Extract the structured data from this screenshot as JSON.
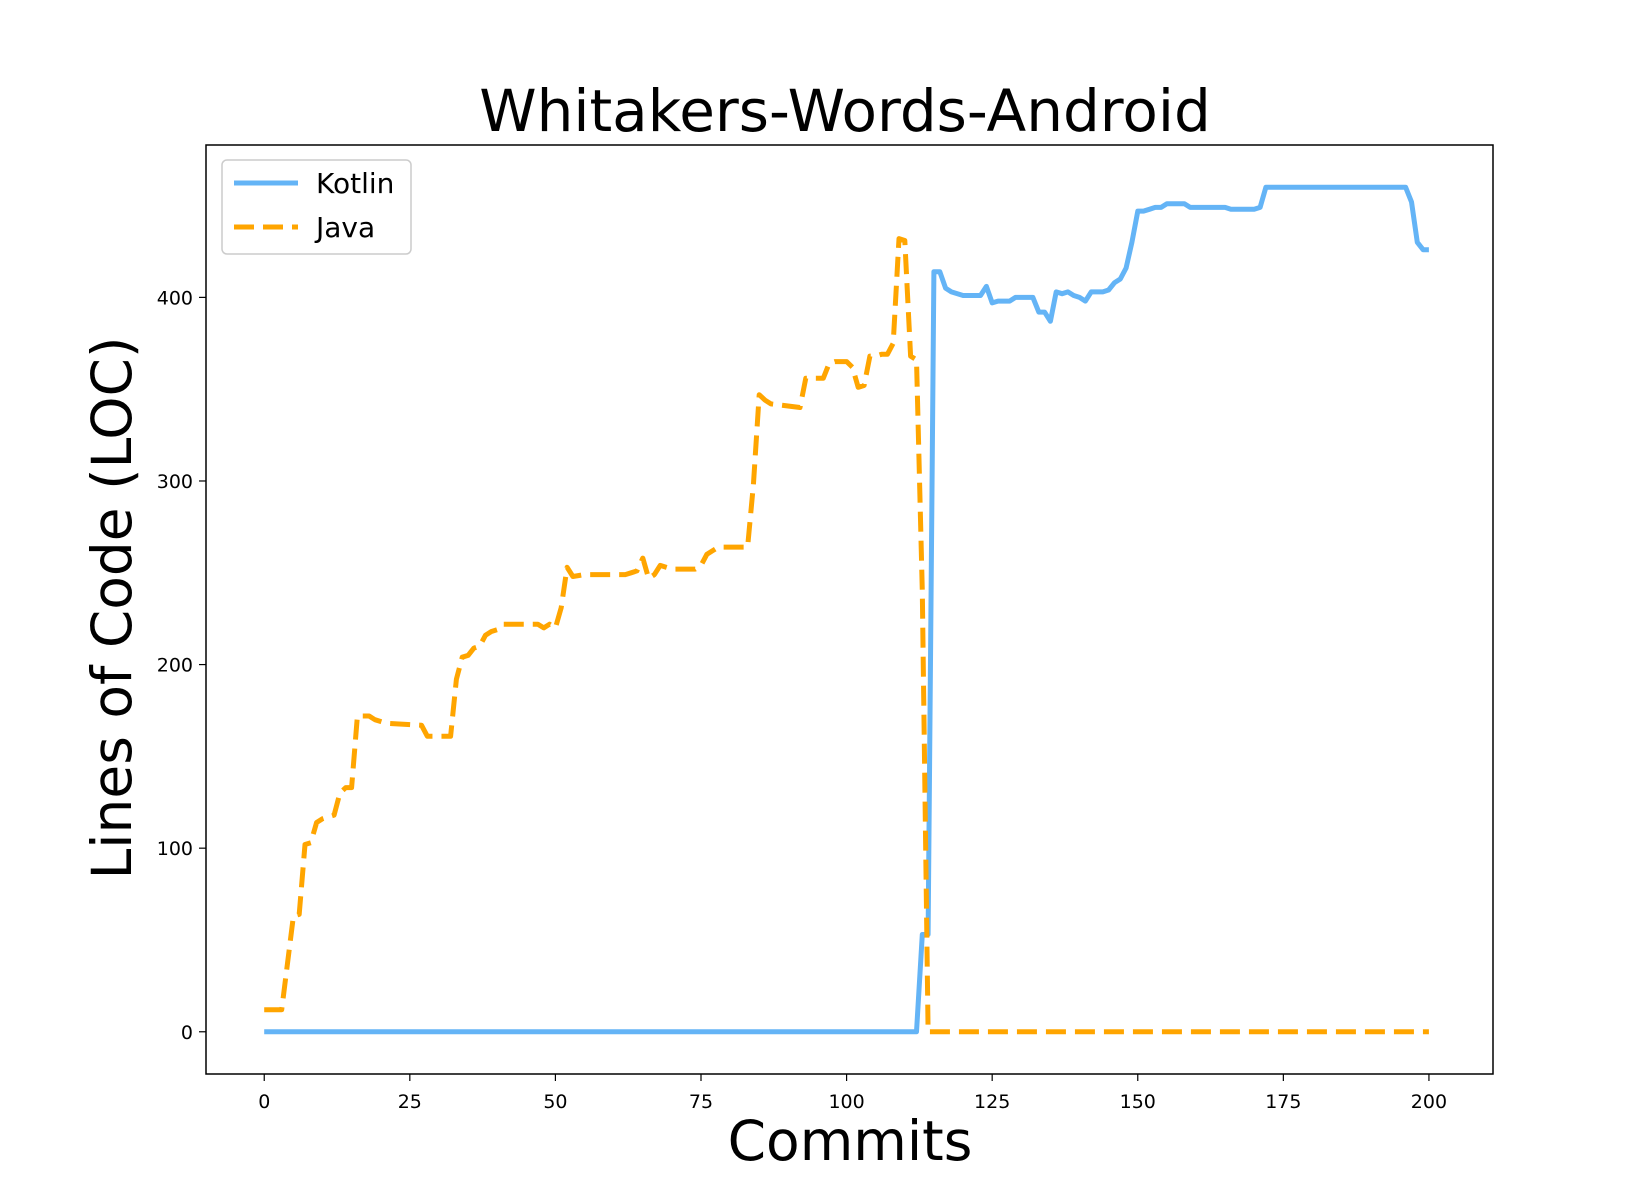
{
  "chart_data": {
    "type": "line",
    "title": "Whitakers-Words-Android",
    "xlabel": "Commits",
    "ylabel": "Lines of Code (LOC)",
    "xlim": [
      -10,
      211
    ],
    "ylim": [
      -23,
      483
    ],
    "xticks": [
      0,
      25,
      50,
      75,
      100,
      125,
      150,
      175,
      200
    ],
    "yticks": [
      0,
      100,
      200,
      300,
      400
    ],
    "grid": false,
    "legend_position": "top-left",
    "series": [
      {
        "name": "Kotlin",
        "color": "#64b4f6",
        "line_style": "solid",
        "points": [
          [
            0,
            0
          ],
          [
            112,
            0
          ],
          [
            113,
            53
          ],
          [
            114,
            53
          ],
          [
            115,
            414
          ],
          [
            116,
            414
          ],
          [
            117,
            405
          ],
          [
            118,
            403
          ],
          [
            120,
            401
          ],
          [
            123,
            401
          ],
          [
            124,
            406
          ],
          [
            125,
            397
          ],
          [
            126,
            398
          ],
          [
            128,
            398
          ],
          [
            129,
            400
          ],
          [
            132,
            400
          ],
          [
            133,
            392
          ],
          [
            134,
            392
          ],
          [
            135,
            387
          ],
          [
            136,
            403
          ],
          [
            137,
            402
          ],
          [
            138,
            403
          ],
          [
            139,
            401
          ],
          [
            140,
            400
          ],
          [
            141,
            398
          ],
          [
            142,
            403
          ],
          [
            144,
            403
          ],
          [
            145,
            404
          ],
          [
            146,
            408
          ],
          [
            147,
            410
          ],
          [
            148,
            416
          ],
          [
            149,
            430
          ],
          [
            150,
            447
          ],
          [
            151,
            447
          ],
          [
            152,
            448
          ],
          [
            153,
            449
          ],
          [
            154,
            449
          ],
          [
            155,
            451
          ],
          [
            158,
            451
          ],
          [
            159,
            449
          ],
          [
            165,
            449
          ],
          [
            166,
            448
          ],
          [
            170,
            448
          ],
          [
            171,
            449
          ],
          [
            172,
            460
          ],
          [
            196,
            460
          ],
          [
            197,
            452
          ],
          [
            198,
            430
          ],
          [
            199,
            426
          ],
          [
            200,
            426
          ]
        ]
      },
      {
        "name": "Java",
        "color": "#ffa500",
        "line_style": "dashed",
        "points": [
          [
            0,
            12
          ],
          [
            3,
            12
          ],
          [
            5,
            63
          ],
          [
            6,
            64
          ],
          [
            7,
            102
          ],
          [
            8,
            103
          ],
          [
            9,
            114
          ],
          [
            10,
            116
          ],
          [
            12,
            118
          ],
          [
            13,
            130
          ],
          [
            14,
            133
          ],
          [
            15,
            133
          ],
          [
            16,
            172
          ],
          [
            18,
            172
          ],
          [
            19,
            170
          ],
          [
            20,
            169
          ],
          [
            21,
            168
          ],
          [
            27,
            167
          ],
          [
            28,
            161
          ],
          [
            32,
            161
          ],
          [
            33,
            192
          ],
          [
            34,
            204
          ],
          [
            35,
            205
          ],
          [
            36,
            209
          ],
          [
            37,
            210
          ],
          [
            38,
            216
          ],
          [
            39,
            218
          ],
          [
            40,
            219
          ],
          [
            41,
            222
          ],
          [
            47,
            222
          ],
          [
            48,
            220
          ],
          [
            49,
            222
          ],
          [
            50,
            220
          ],
          [
            51,
            231
          ],
          [
            52,
            253
          ],
          [
            53,
            248
          ],
          [
            55,
            249
          ],
          [
            62,
            249
          ],
          [
            63,
            250
          ],
          [
            64,
            251
          ],
          [
            65,
            258
          ],
          [
            66,
            247
          ],
          [
            67,
            249
          ],
          [
            68,
            254
          ],
          [
            69,
            253
          ],
          [
            70,
            252
          ],
          [
            74,
            252
          ],
          [
            75,
            254
          ],
          [
            76,
            260
          ],
          [
            77,
            262
          ],
          [
            78,
            264
          ],
          [
            83,
            264
          ],
          [
            84,
            298
          ],
          [
            85,
            347
          ],
          [
            86,
            344
          ],
          [
            87,
            342
          ],
          [
            92,
            340
          ],
          [
            93,
            356
          ],
          [
            96,
            356
          ],
          [
            97,
            364
          ],
          [
            98,
            365
          ],
          [
            100,
            365
          ],
          [
            101,
            362
          ],
          [
            102,
            351
          ],
          [
            103,
            352
          ],
          [
            104,
            368
          ],
          [
            105,
            368
          ],
          [
            106,
            369
          ],
          [
            107,
            369
          ],
          [
            108,
            375
          ],
          [
            109,
            432
          ],
          [
            110,
            431
          ],
          [
            111,
            368
          ],
          [
            112,
            366
          ],
          [
            113,
            240
          ],
          [
            114,
            0
          ],
          [
            200,
            0
          ]
        ]
      }
    ]
  }
}
